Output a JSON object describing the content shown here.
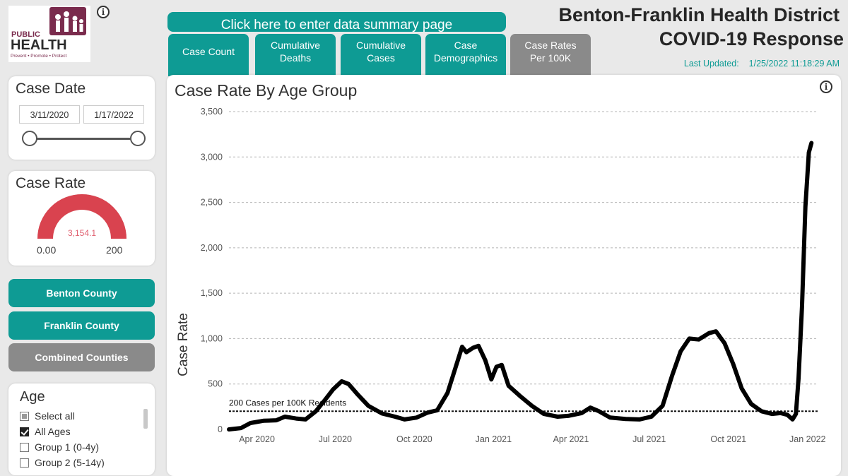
{
  "header": {
    "logo_line1": "PUBLIC",
    "logo_line2": "HEALTH",
    "logo_tagline": "Prevent • Promote • Protect",
    "summary_button": "Click here to enter data summary page",
    "tabs": [
      {
        "label1": "Case Count",
        "label2": ""
      },
      {
        "label1": "Cumulative",
        "label2": "Deaths"
      },
      {
        "label1": "Cumulative",
        "label2": "Cases"
      },
      {
        "label1": "Case",
        "label2": "Demographics"
      },
      {
        "label1": "Case Rates",
        "label2": "Per 100K"
      }
    ],
    "title_line1": "Benton-Franklin Health District",
    "title_line2": "COVID-19 Response",
    "last_updated_label": "Last Updated:",
    "last_updated_value": "1/25/2022 11:18:29 AM"
  },
  "filters": {
    "case_date": {
      "title": "Case Date",
      "start": "3/11/2020",
      "end": "1/17/2022"
    },
    "case_rate": {
      "title": "Case Rate",
      "value": "3,154.1",
      "min": "0.00",
      "max": "200",
      "fill_fraction": 1.0
    },
    "county_buttons": [
      "Benton County",
      "Franklin County",
      "Combined Counties"
    ],
    "age": {
      "title": "Age",
      "options": [
        {
          "label": "Select all",
          "state": "partial"
        },
        {
          "label": "All Ages",
          "state": "checked"
        },
        {
          "label": "Group 1 (0-4y)",
          "state": "unchecked"
        },
        {
          "label": "Group 2 (5-14y)",
          "state": "unchecked"
        }
      ]
    }
  },
  "colors": {
    "teal": "#0e9b94",
    "gray": "#8a8a8a",
    "gauge": "#d9434f",
    "line": "#000000"
  },
  "chart_data": {
    "type": "line",
    "title": "Case Rate By Age Group",
    "ylabel": "Case Rate",
    "xlabel": "",
    "ylim": [
      0,
      3500
    ],
    "y_ticks": [
      0,
      500,
      1000,
      1500,
      2000,
      2500,
      3000,
      3500
    ],
    "x_ticks": [
      "Apr 2020",
      "Jul 2020",
      "Oct 2020",
      "Jan 2021",
      "Apr 2021",
      "Jul 2021",
      "Oct 2021",
      "Jan 2022"
    ],
    "grid": true,
    "reference_line": {
      "value": 200,
      "label": "200 Cases per 100K Residents"
    },
    "series": [
      {
        "name": "All Ages",
        "points": [
          [
            "2020-03-11",
            0
          ],
          [
            "2020-03-25",
            15
          ],
          [
            "2020-04-05",
            70
          ],
          [
            "2020-04-20",
            95
          ],
          [
            "2020-05-05",
            100
          ],
          [
            "2020-05-15",
            140
          ],
          [
            "2020-05-28",
            120
          ],
          [
            "2020-06-08",
            110
          ],
          [
            "2020-06-20",
            200
          ],
          [
            "2020-07-01",
            330
          ],
          [
            "2020-07-10",
            440
          ],
          [
            "2020-07-20",
            530
          ],
          [
            "2020-07-28",
            500
          ],
          [
            "2020-08-08",
            380
          ],
          [
            "2020-08-20",
            260
          ],
          [
            "2020-09-05",
            175
          ],
          [
            "2020-09-20",
            140
          ],
          [
            "2020-10-01",
            110
          ],
          [
            "2020-10-15",
            130
          ],
          [
            "2020-10-28",
            185
          ],
          [
            "2020-11-08",
            210
          ],
          [
            "2020-11-20",
            400
          ],
          [
            "2020-11-30",
            700
          ],
          [
            "2020-12-07",
            910
          ],
          [
            "2020-12-12",
            850
          ],
          [
            "2020-12-20",
            900
          ],
          [
            "2020-12-26",
            920
          ],
          [
            "2021-01-03",
            760
          ],
          [
            "2021-01-10",
            550
          ],
          [
            "2021-01-16",
            690
          ],
          [
            "2021-01-22",
            710
          ],
          [
            "2021-01-30",
            480
          ],
          [
            "2021-02-12",
            370
          ],
          [
            "2021-02-26",
            260
          ],
          [
            "2021-03-12",
            170
          ],
          [
            "2021-03-28",
            140
          ],
          [
            "2021-04-10",
            150
          ],
          [
            "2021-04-25",
            180
          ],
          [
            "2021-05-05",
            240
          ],
          [
            "2021-05-15",
            200
          ],
          [
            "2021-05-28",
            130
          ],
          [
            "2021-06-15",
            115
          ],
          [
            "2021-07-01",
            110
          ],
          [
            "2021-07-15",
            140
          ],
          [
            "2021-07-28",
            260
          ],
          [
            "2021-08-08",
            590
          ],
          [
            "2021-08-18",
            860
          ],
          [
            "2021-08-28",
            1000
          ],
          [
            "2021-09-08",
            990
          ],
          [
            "2021-09-20",
            1060
          ],
          [
            "2021-09-28",
            1080
          ],
          [
            "2021-10-08",
            950
          ],
          [
            "2021-10-18",
            720
          ],
          [
            "2021-10-28",
            450
          ],
          [
            "2021-11-08",
            280
          ],
          [
            "2021-11-20",
            200
          ],
          [
            "2021-12-02",
            170
          ],
          [
            "2021-12-12",
            180
          ],
          [
            "2021-12-20",
            160
          ],
          [
            "2021-12-26",
            110
          ],
          [
            "2021-12-30",
            170
          ],
          [
            "2022-01-02",
            560
          ],
          [
            "2022-01-06",
            1350
          ],
          [
            "2022-01-10",
            2450
          ],
          [
            "2022-01-14",
            3050
          ],
          [
            "2022-01-17",
            3154
          ]
        ]
      }
    ]
  }
}
